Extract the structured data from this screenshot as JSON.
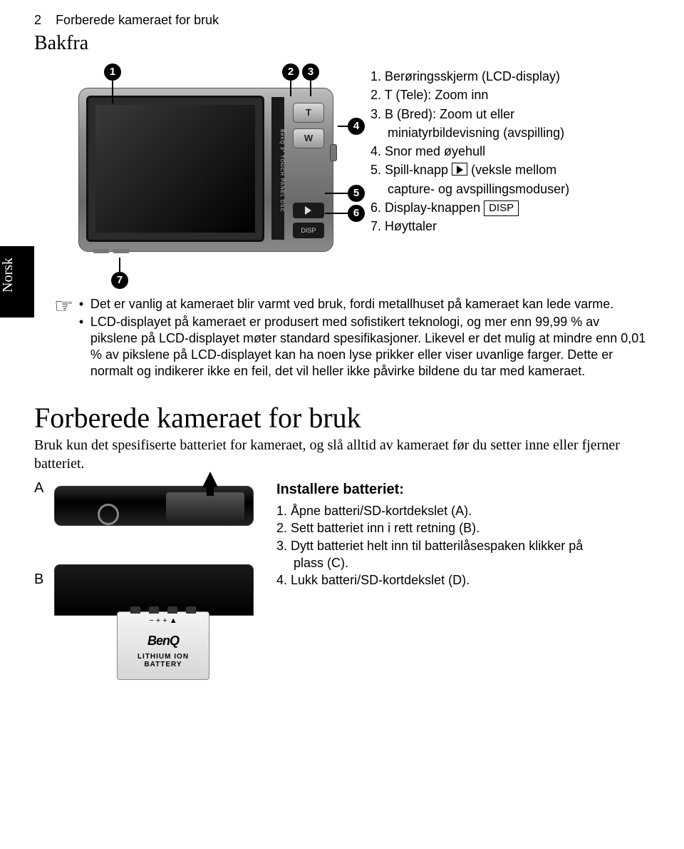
{
  "header": {
    "page_num": "2",
    "chapter": "Forberede kameraet for bruk"
  },
  "subsection": "Bakfra",
  "side_tab": "Norsk",
  "callouts": {
    "n1": "1",
    "n2": "2",
    "n3": "3",
    "n4": "4",
    "n5": "5",
    "n6": "6",
    "n7": "7"
  },
  "camera_labels": {
    "t": "T",
    "w": "W",
    "disp": "DISP",
    "brand": "BenQ  3\" TOUCH PANEL DSC"
  },
  "legend": {
    "i1": "1. Berøringsskjerm (LCD-display)",
    "i2": "2. T (Tele): Zoom inn",
    "i3a": "3. B (Bred): Zoom ut eller",
    "i3b": "miniatyrbildevisning (avspilling)",
    "i4": "4. Snor med øyehull",
    "i5a": "5. Spill-knapp ",
    "i5b": " (veksle mellom",
    "i5c": "capture- og avspillingsmoduser)",
    "i6a": "6. Display-knappen ",
    "i6b": "DISP",
    "i7": "7. Høyttaler"
  },
  "notes": {
    "n1": "Det er vanlig at kameraet blir varmt ved bruk, fordi metallhuset på kameraet kan lede varme.",
    "n2": "LCD-displayet på kameraet er produsert med sofistikert teknologi, og mer enn 99,99 % av pikslene på LCD-displayet møter standard spesifikasjoner. Likevel er det mulig at mindre enn 0,01 % av pikslene på LCD-displayet kan ha noen lyse prikker eller viser uvanlige farger. Dette er normalt og indikerer ikke en feil, det vil heller ikke påvirke bildene du tar med kameraet."
  },
  "main_heading": "Forberede kameraet for bruk",
  "sub_para": "Bruk kun det spesifiserte batteriet for kameraet, og slå alltid av kameraet før du setter inne eller fjerner batteriet.",
  "labels": {
    "A": "A",
    "B": "B"
  },
  "battery": {
    "logo": "BenQ",
    "text": "LITHIUM ION BATTERY",
    "sym": "−  +  +  ▲"
  },
  "install": {
    "heading": "Installere batteriet:",
    "s1": "1. Åpne batteri/SD-kortdekslet (A).",
    "s2": "2. Sett batteriet inn i rett retning (B).",
    "s3": "3. Dytt batteriet helt inn til batterilåsespaken klikker på",
    "s3b": "plass (C).",
    "s4": "4. Lukk batteri/SD-kortdekslet (D)."
  }
}
